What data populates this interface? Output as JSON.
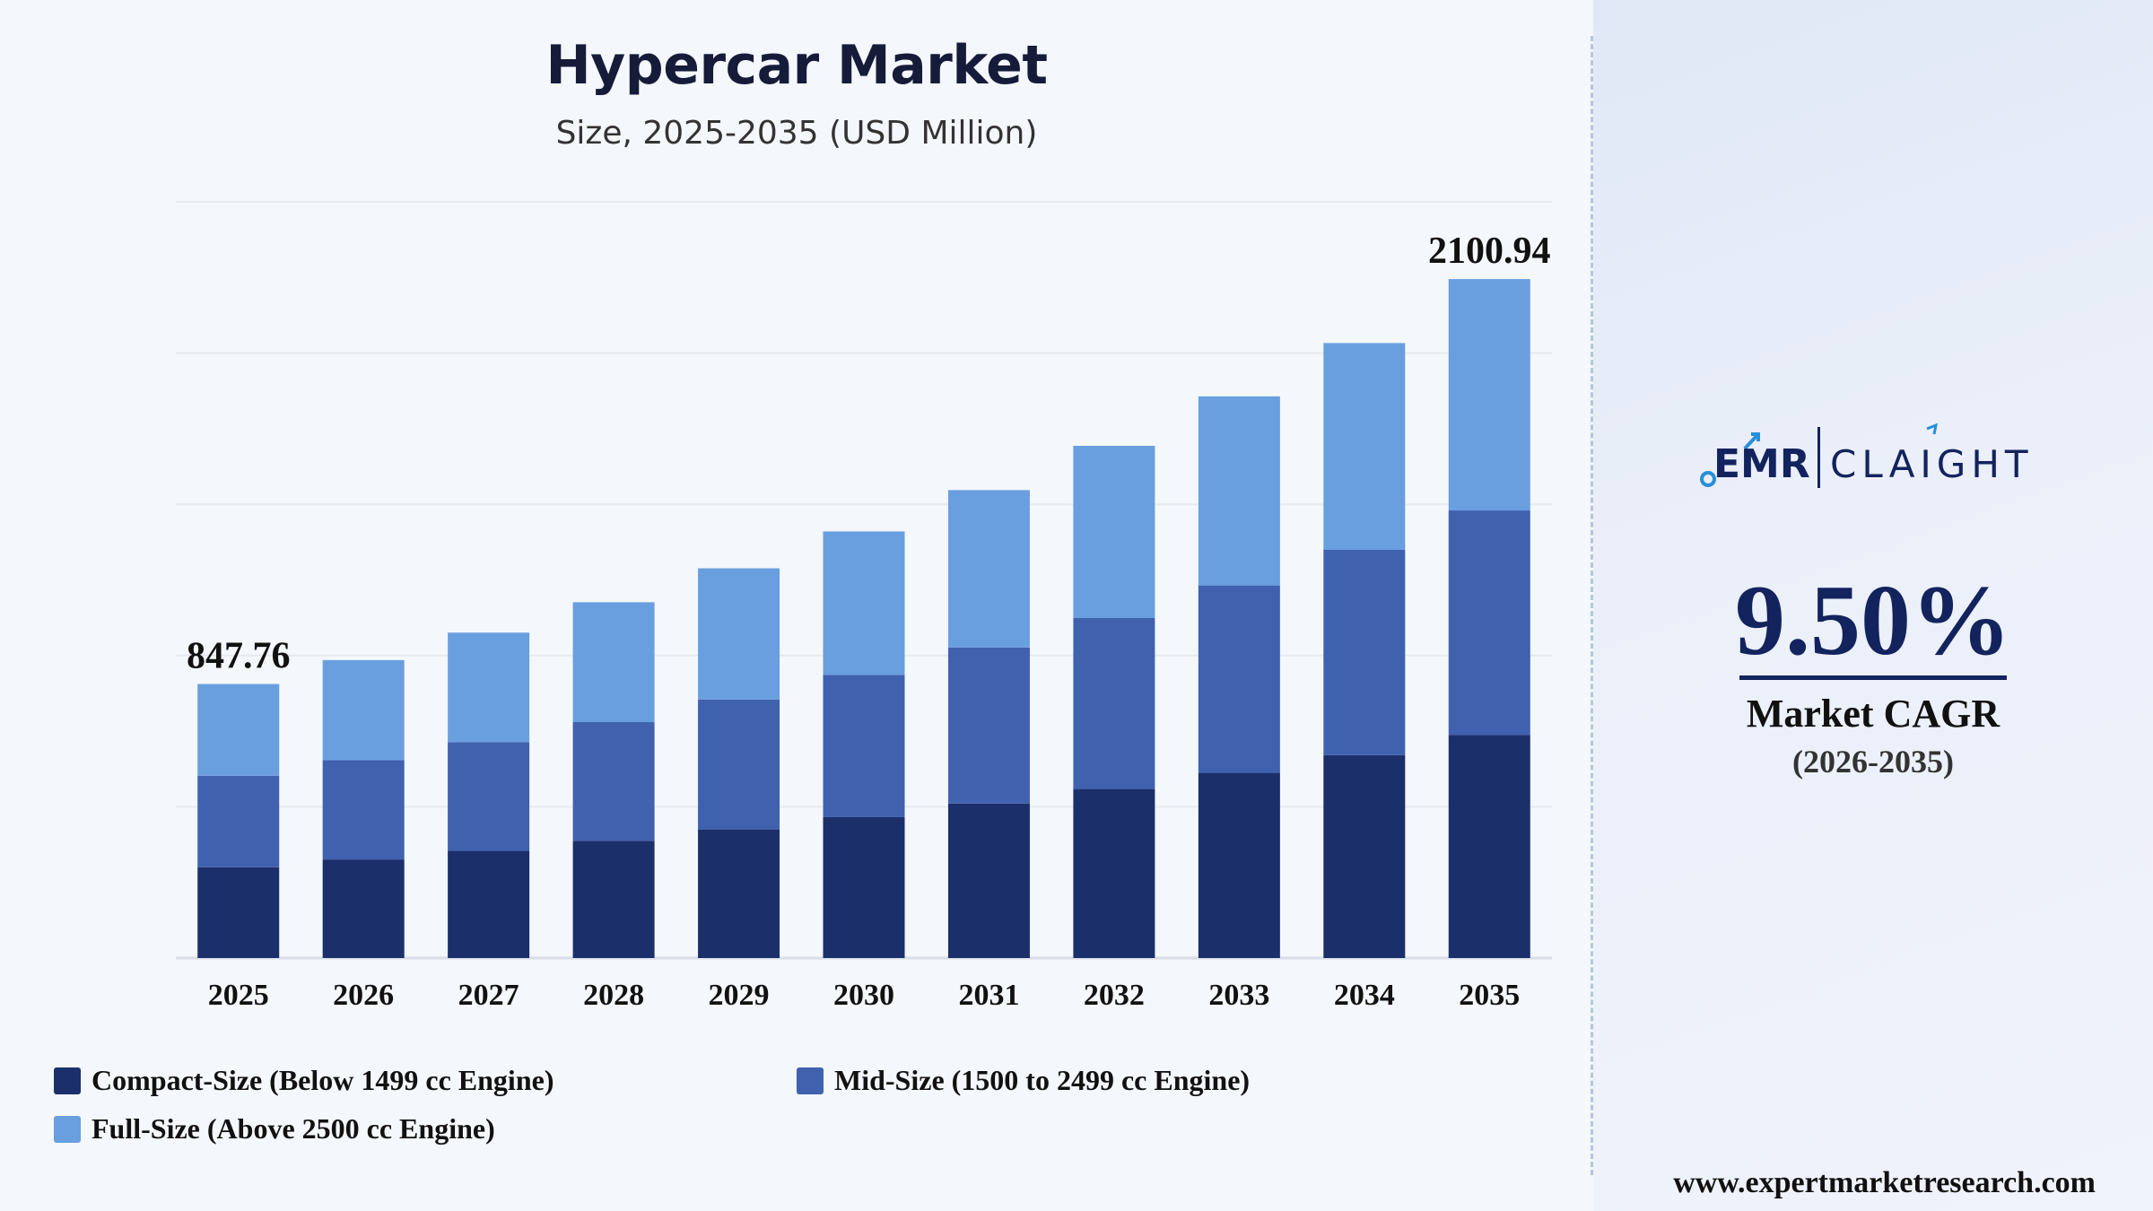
{
  "chart_data": {
    "type": "bar",
    "stacked": true,
    "title": "Hypercar Market",
    "subtitle": "Size, 2025-2035 (USD Million)",
    "categories": [
      "2025",
      "2026",
      "2027",
      "2028",
      "2029",
      "2030",
      "2031",
      "2032",
      "2033",
      "2034",
      "2035"
    ],
    "series": [
      {
        "name": "Compact-Size (Below 1499 cc Engine)",
        "color": "#1b2f6b",
        "values": [
          281,
          305,
          332,
          363,
          398,
          436,
          478,
          523,
          573,
          628,
          690
        ]
      },
      {
        "name": "Mid-Size (1500 to 2499 cc Engine)",
        "color": "#4061ae",
        "values": [
          283,
          307,
          336,
          367,
          402,
          440,
          483,
          529,
          580,
          635,
          695
        ]
      },
      {
        "name": "Full-Size (Above 2500 cc Engine)",
        "color": "#6a9fdf",
        "values": [
          284,
          310,
          339,
          371,
          406,
          444,
          487,
          533,
          585,
          640,
          716
        ]
      }
    ],
    "data_labels": [
      {
        "category": "2025",
        "text": "847.76"
      },
      {
        "category": "2035",
        "text": "2100.94"
      }
    ],
    "ylim": [
      0,
      2340
    ],
    "grid": true,
    "legend_position": "bottom"
  },
  "sidebar": {
    "cagr_value": "9.50%",
    "cagr_label": "Market CAGR",
    "cagr_period": "(2026-2035)"
  },
  "logo": {
    "left_text": "EMR",
    "right_text": "CLAIGHT"
  },
  "footer": {
    "website": "www.expertmarketresearch.com"
  },
  "colors": {
    "accent": "#13235e",
    "title": "#161b3a"
  }
}
